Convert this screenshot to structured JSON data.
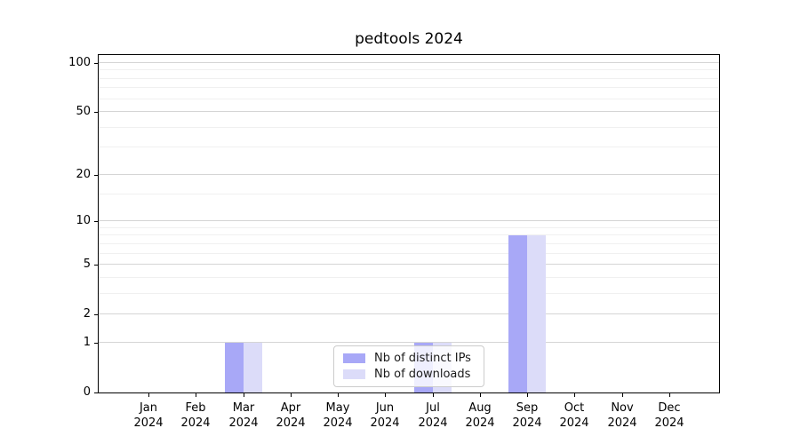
{
  "chart_data": {
    "type": "bar",
    "title": "pedtools 2024",
    "categories": [
      "Jan\n2024",
      "Feb\n2024",
      "Mar\n2024",
      "Apr\n2024",
      "May\n2024",
      "Jun\n2024",
      "Jul\n2024",
      "Aug\n2024",
      "Sep\n2024",
      "Oct\n2024",
      "Nov\n2024",
      "Dec\n2024"
    ],
    "series": [
      {
        "name": "Nb of distinct IPs",
        "color": "#a8a8f7",
        "values": [
          0,
          0,
          1,
          0,
          0,
          0,
          1,
          0,
          8,
          0,
          0,
          0
        ]
      },
      {
        "name": "Nb of downloads",
        "color": "#dcdcf9",
        "values": [
          0,
          0,
          1,
          0,
          0,
          0,
          1,
          0,
          8,
          0,
          0,
          0
        ]
      }
    ],
    "xlabel": "",
    "ylabel": "",
    "yscale": "log10(1+v)",
    "ylim": [
      0,
      112
    ],
    "yticks": [
      0,
      1,
      2,
      5,
      10,
      20,
      50,
      100
    ],
    "minor_gridline_values": [
      3,
      4,
      6,
      7,
      8,
      9,
      15,
      30,
      40,
      60,
      70,
      80,
      90
    ],
    "grid": "on",
    "legend_position": "lower center",
    "style": {
      "major_grid_color": "#d5d5d5",
      "minor_grid_color": "#f0f0f0",
      "spine_color": "#000000",
      "background": "#ffffff"
    }
  }
}
